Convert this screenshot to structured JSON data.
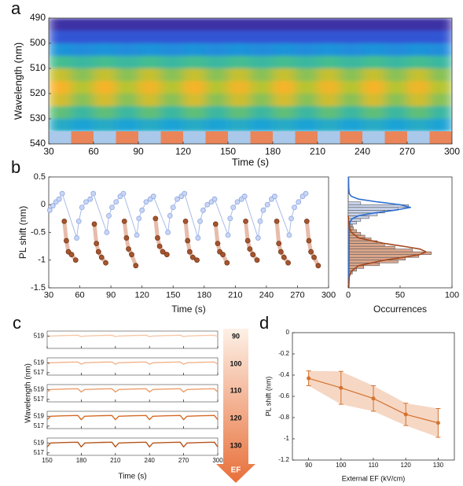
{
  "chart_data": [
    {
      "type": "heatmap",
      "panel": "a",
      "xlabel": "Time (s)",
      "ylabel": "Wavelength (nm)",
      "xlim": [
        30,
        300
      ],
      "xticks": [
        30,
        60,
        90,
        120,
        150,
        180,
        210,
        240,
        270,
        300
      ],
      "ylim": [
        490,
        540
      ],
      "yticks": [
        490,
        500,
        510,
        520,
        530,
        540
      ],
      "y_reversed": true,
      "colormap": [
        "#3e2a9e",
        "#2c62e6",
        "#1aa3d6",
        "#45bd8f",
        "#b5c430",
        "#f7b32b"
      ],
      "x_edges": [
        30,
        45,
        60,
        75,
        90,
        105,
        120,
        135,
        150,
        165,
        180,
        195,
        210,
        225,
        240,
        255,
        270,
        285,
        300
      ],
      "y_edges": [
        490,
        495,
        500,
        505,
        510,
        515,
        520,
        525,
        530,
        535
      ],
      "values": [
        [
          0.02,
          0.15,
          0.35,
          0.6,
          0.85,
          1,
          0.9,
          0.65,
          0.45
        ],
        [
          0.02,
          0.15,
          0.33,
          0.55,
          0.72,
          0.8,
          0.72,
          0.55,
          0.4
        ],
        [
          0.02,
          0.15,
          0.35,
          0.6,
          0.85,
          1,
          0.9,
          0.65,
          0.45
        ],
        [
          0.02,
          0.15,
          0.33,
          0.55,
          0.72,
          0.8,
          0.72,
          0.55,
          0.4
        ],
        [
          0.02,
          0.15,
          0.35,
          0.6,
          0.85,
          0.98,
          0.88,
          0.65,
          0.45
        ],
        [
          0.02,
          0.15,
          0.33,
          0.55,
          0.72,
          0.8,
          0.72,
          0.55,
          0.4
        ],
        [
          0.02,
          0.15,
          0.35,
          0.6,
          0.85,
          1,
          0.9,
          0.65,
          0.45
        ],
        [
          0.02,
          0.15,
          0.33,
          0.55,
          0.72,
          0.8,
          0.72,
          0.55,
          0.4
        ],
        [
          0.02,
          0.15,
          0.35,
          0.6,
          0.85,
          0.98,
          0.88,
          0.65,
          0.45
        ],
        [
          0.02,
          0.15,
          0.33,
          0.55,
          0.72,
          0.8,
          0.72,
          0.55,
          0.4
        ],
        [
          0.02,
          0.15,
          0.35,
          0.6,
          0.85,
          1,
          0.9,
          0.65,
          0.45
        ],
        [
          0.02,
          0.15,
          0.33,
          0.55,
          0.72,
          0.8,
          0.72,
          0.55,
          0.4
        ],
        [
          0.02,
          0.15,
          0.35,
          0.6,
          0.85,
          0.98,
          0.88,
          0.65,
          0.45
        ],
        [
          0.02,
          0.15,
          0.33,
          0.55,
          0.72,
          0.8,
          0.72,
          0.55,
          0.4
        ],
        [
          0.02,
          0.15,
          0.35,
          0.6,
          0.85,
          1,
          0.9,
          0.65,
          0.45
        ],
        [
          0.02,
          0.15,
          0.33,
          0.55,
          0.72,
          0.8,
          0.72,
          0.55,
          0.4
        ],
        [
          0.02,
          0.15,
          0.35,
          0.6,
          0.85,
          0.98,
          0.88,
          0.65,
          0.45
        ],
        [
          0.02,
          0.15,
          0.33,
          0.55,
          0.72,
          0.8,
          0.72,
          0.55,
          0.4
        ]
      ],
      "strip": {
        "ylim": [
          535,
          540
        ],
        "colors": [
          "#a9c8ea",
          "#ea8559"
        ],
        "values": [
          0,
          1,
          0,
          1,
          0,
          1,
          0,
          1,
          0,
          1,
          0,
          1,
          0,
          1,
          0,
          1,
          0,
          1
        ]
      }
    },
    {
      "type": "scatter",
      "panel": "b",
      "xlabel": "Time (s)",
      "ylabel": "PL shift (nm)",
      "xlim": [
        30,
        300
      ],
      "xticks": [
        30,
        60,
        90,
        120,
        150,
        180,
        210,
        240,
        270,
        300
      ],
      "ylim": [
        -1.5,
        0.5
      ],
      "yticks": [
        -1.5,
        -1,
        -0.5,
        0,
        0.5
      ],
      "series": [
        {
          "color": "#c9d6f3",
          "edge": "#8ea6e2",
          "line_color": "#a9bde8",
          "line_width": 1,
          "x": [
            [
              31,
              34,
              37,
              40,
              43,
              57,
              59,
              62,
              66,
              70,
              73,
              86,
              88,
              91,
              95,
              99,
              102,
              115,
              117,
              120,
              124,
              128,
              131,
              145,
              147,
              150,
              154,
              158,
              161,
              174,
              176,
              179,
              183,
              187,
              190,
              203,
              205,
              208,
              212,
              216,
              219,
              232,
              234,
              237,
              241,
              245,
              248,
              262,
              264,
              267,
              271,
              275,
              278
            ]
          ],
          "values": [
            [
              -0.1,
              -0.02,
              0.05,
              0.1,
              0.2,
              -0.6,
              -0.3,
              -0.05,
              0.05,
              0.1,
              0.2,
              -0.5,
              -0.2,
              -0.05,
              0.05,
              0.15,
              0.2,
              -0.55,
              -0.25,
              -0.1,
              0.05,
              0.1,
              0.15,
              -0.5,
              -0.2,
              -0.05,
              0.1,
              0.15,
              0.2,
              -0.6,
              -0.3,
              -0.1,
              0,
              0.05,
              0.1,
              -0.55,
              -0.25,
              -0.05,
              0.05,
              0.1,
              0.15,
              -0.6,
              -0.3,
              -0.1,
              0,
              0.1,
              0.15,
              -0.55,
              -0.25,
              -0.05,
              0.05,
              0.15,
              0.2
            ]
          ]
        },
        {
          "color": "#a4552f",
          "edge": "#7a3a1a",
          "line_color": "#e6bcab",
          "line_width": 5,
          "x": [
            [
              45,
              47,
              49,
              52,
              56
            ],
            [
              74,
              76,
              78,
              81,
              85
            ],
            [
              103,
              105,
              107,
              110,
              114
            ],
            [
              133,
              135,
              137,
              140,
              144
            ],
            [
              162,
              164,
              166,
              169,
              173
            ],
            [
              191,
              193,
              195,
              198,
              202
            ],
            [
              220,
              222,
              224,
              227,
              231
            ],
            [
              250,
              252,
              254,
              257,
              261
            ],
            [
              279,
              281,
              283,
              286,
              290
            ]
          ],
          "values": [
            [
              -0.3,
              -0.65,
              -0.85,
              -0.9,
              -1
            ],
            [
              -0.35,
              -0.7,
              -0.85,
              -0.95,
              -1.05
            ],
            [
              -0.3,
              -0.6,
              -0.8,
              -0.9,
              -1.1
            ],
            [
              -0.25,
              -0.6,
              -0.75,
              -0.85,
              -0.9
            ],
            [
              -0.3,
              -0.65,
              -0.85,
              -0.95,
              -1
            ],
            [
              -0.35,
              -0.7,
              -0.85,
              -0.9,
              -1.05
            ],
            [
              -0.3,
              -0.65,
              -0.8,
              -0.9,
              -1
            ],
            [
              -0.3,
              -0.7,
              -0.85,
              -0.95,
              -1.05
            ],
            [
              -0.3,
              -0.65,
              -0.85,
              -0.95,
              -1.1
            ]
          ]
        }
      ]
    },
    {
      "type": "histogram",
      "xlabel": "Occurrences",
      "xlim": [
        0,
        100
      ],
      "xticks": [
        0,
        50,
        100
      ],
      "ylim": [
        -1.5,
        0.5
      ],
      "series": [
        {
          "color": "#c9d4ec",
          "edge": "#555555",
          "fit_color": "#2f6fd0",
          "bins": [
            -0.4,
            -0.35,
            -0.3,
            -0.25,
            -0.2,
            -0.15,
            -0.1,
            -0.05,
            0,
            0.05
          ],
          "values": [
            4,
            8,
            12,
            20,
            28,
            35,
            48,
            58,
            12
          ],
          "fit_y": [
            -1.5,
            -0.4,
            -0.3,
            -0.25,
            -0.2,
            -0.15,
            -0.1,
            -0.05,
            0,
            0.05,
            0.1,
            0.15,
            0.2,
            0.3,
            0.5
          ],
          "fit_values": [
            0.5,
            1,
            2,
            4,
            10,
            25,
            45,
            60,
            50,
            28,
            10,
            3,
            1,
            0.5,
            0.3
          ]
        },
        {
          "color": "#dba68c",
          "edge": "#555555",
          "fit_color": "#a5471c",
          "bins": [
            -1.25,
            -1.2,
            -1.15,
            -1.1,
            -1.05,
            -1,
            -0.95,
            -0.9,
            -0.85,
            -0.8,
            -0.75,
            -0.7,
            -0.65,
            -0.6,
            -0.55,
            -0.5,
            -0.45,
            -0.4,
            -0.35
          ],
          "values": [
            4,
            8,
            15,
            30,
            48,
            55,
            68,
            80,
            62,
            45,
            35,
            28,
            22,
            16,
            12,
            8,
            5,
            3
          ],
          "fit_y": [
            -1.5,
            -1.3,
            -1.2,
            -1.1,
            -1,
            -0.95,
            -0.9,
            -0.85,
            -0.8,
            -0.75,
            -0.7,
            -0.6,
            -0.5,
            -0.4,
            -0.3,
            -0.2
          ],
          "fit_values": [
            0.5,
            1,
            3,
            10,
            35,
            53,
            69,
            75,
            69,
            53,
            35,
            10,
            3,
            1,
            0.5,
            0
          ]
        }
      ]
    },
    {
      "type": "line",
      "panel": "c",
      "xlabel": "Time (s)",
      "ylabel": "Wavelength (nm)",
      "arrow_title": "EF",
      "xlim": [
        150,
        300
      ],
      "xticks": [
        150,
        180,
        210,
        240,
        270,
        300
      ],
      "x": [
        150,
        153,
        165,
        177,
        180,
        183,
        195,
        207,
        210,
        213,
        225,
        237,
        240,
        243,
        255,
        267,
        270,
        273,
        285,
        297,
        300
      ],
      "series": [
        {
          "name": "90",
          "color": "#f5c9aa",
          "ylim": [
            516.5,
            520
          ],
          "yticks": [
            519
          ],
          "values": [
            518.9,
            519,
            519.1,
            519.15,
            518.9,
            519,
            519.1,
            519.15,
            518.9,
            519,
            519.1,
            519.15,
            518.9,
            519,
            519.1,
            519.15,
            518.9,
            519,
            519.1,
            519.15,
            518.9
          ]
        },
        {
          "name": "100",
          "color": "#f1b48b",
          "ylim": [
            516.5,
            520
          ],
          "yticks": [
            517,
            519
          ],
          "values": [
            518.7,
            519,
            519.1,
            519.15,
            518.7,
            519,
            519.1,
            519.15,
            518.7,
            519,
            519.1,
            519.15,
            518.7,
            519,
            519.1,
            519.15,
            518.7,
            519,
            519.1,
            519.15,
            518.7
          ]
        },
        {
          "name": "110",
          "color": "#eb9e6c",
          "ylim": [
            516.5,
            520
          ],
          "yticks": [
            517,
            519
          ],
          "values": [
            518.5,
            519,
            519.1,
            519.15,
            518.5,
            519,
            519.1,
            519.15,
            518.5,
            519,
            519.1,
            519.15,
            518.5,
            519,
            519.1,
            519.15,
            518.5,
            519,
            519.1,
            519.15,
            518.5
          ]
        },
        {
          "name": "120",
          "color": "#d46a27",
          "ylim": [
            516.5,
            520
          ],
          "yticks": [
            517,
            519
          ],
          "values": [
            518.3,
            519,
            519.1,
            519.15,
            518.3,
            519,
            519.1,
            519.15,
            518.3,
            519,
            519.1,
            519.15,
            518.3,
            519,
            519.1,
            519.15,
            518.3,
            519,
            519.1,
            519.15,
            518.3
          ]
        },
        {
          "name": "130",
          "color": "#b5551a",
          "ylim": [
            516.5,
            520
          ],
          "yticks": [
            517,
            519
          ],
          "values": [
            518.2,
            519,
            519.1,
            519.15,
            518.2,
            519,
            519.1,
            519.15,
            518.2,
            519,
            519.1,
            519.15,
            518.2,
            519,
            519.1,
            519.15,
            518.2,
            519,
            519.1,
            519.15,
            518.2
          ]
        }
      ]
    },
    {
      "type": "errorbar",
      "panel": "d",
      "xlabel": "External EF (kV/cm)",
      "ylabel": "PL shift (nm)",
      "xlim": [
        85,
        135
      ],
      "xticks": [
        90,
        100,
        110,
        120,
        130
      ],
      "ylim": [
        -1.2,
        0
      ],
      "yticks": [
        0,
        -0.2,
        -0.4,
        -0.6,
        -0.8,
        -1,
        -1.2
      ],
      "color": "#d4722f",
      "band_color": "#f6d7c4",
      "x": [
        90,
        100,
        110,
        120,
        130
      ],
      "values": [
        -0.43,
        -0.52,
        -0.62,
        -0.77,
        -0.85
      ],
      "errors": [
        0.07,
        0.155,
        0.12,
        0.105,
        0.135
      ]
    }
  ]
}
